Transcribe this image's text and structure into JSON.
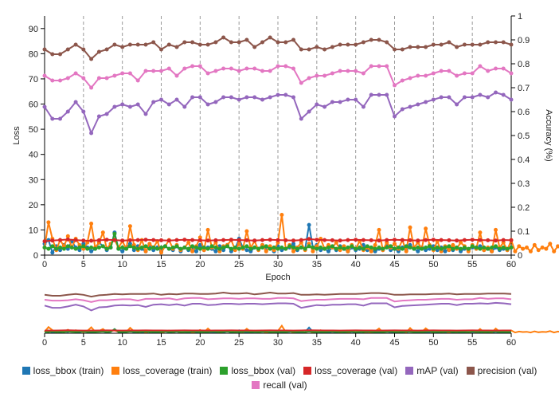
{
  "chart_data": {
    "type": "line",
    "xlabel": "Epoch",
    "ylabel_left": "Loss",
    "ylabel_right": "Accuracy (%)",
    "xlim": [
      0,
      60
    ],
    "ylim_left": [
      0,
      95
    ],
    "ylim_right": [
      0,
      1
    ],
    "x_ticks": [
      "0",
      "5",
      "10",
      "15",
      "20",
      "25",
      "30",
      "35",
      "40",
      "45",
      "50",
      "55",
      "60"
    ],
    "y_ticks_left": [
      "0",
      "10",
      "20",
      "30",
      "40",
      "50",
      "60",
      "70",
      "80",
      "90"
    ],
    "y_ticks_right": [
      "0",
      "0.1",
      "0.2",
      "0.3",
      "0.4",
      "0.5",
      "0.6",
      "0.7",
      "0.8",
      "0.9",
      "1"
    ],
    "vertical_gridlines_at": [
      5,
      10,
      15,
      20,
      25,
      30,
      35,
      40,
      45,
      50,
      55
    ],
    "legend_position": "bottom",
    "overview_panel": true,
    "series": [
      {
        "name": "loss_bbox (train)",
        "color": "#1f77b4",
        "axis": "left",
        "x_step": 0.5,
        "values": [
          4.5,
          6.0,
          1.0,
          3.5,
          2.0,
          4.0,
          2.5,
          5.5,
          3.0,
          2.0,
          4.5,
          3.0,
          1.5,
          2.5,
          5.0,
          3.5,
          2.0,
          3.0,
          9.0,
          2.5,
          1.5,
          3.0,
          4.5,
          2.0,
          3.5,
          2.5,
          1.5,
          4.0,
          2.0,
          3.0,
          1.5,
          3.5,
          2.5,
          2.0,
          3.5,
          1.5,
          3.0,
          2.0,
          2.5,
          1.5,
          4.0,
          2.0,
          3.0,
          2.5,
          1.5,
          3.5,
          2.0,
          4.0,
          1.5,
          2.5,
          6.5,
          3.0,
          2.0,
          1.5,
          3.0,
          2.5,
          4.0,
          2.0,
          3.0,
          1.5,
          3.5,
          2.0,
          2.5,
          3.0,
          4.5,
          2.0,
          3.0,
          2.5,
          12.0,
          3.0,
          4.0,
          2.0,
          2.5,
          1.5,
          3.0,
          2.0,
          3.5,
          2.5,
          1.5,
          3.0,
          2.0,
          2.5,
          4.0,
          2.0,
          3.0,
          1.5,
          2.5,
          2.0,
          3.5,
          2.0,
          2.5,
          1.5,
          3.0,
          2.0,
          4.0,
          2.5,
          1.5,
          3.0,
          2.0,
          2.5,
          3.5,
          2.0,
          3.0,
          1.5,
          2.5,
          2.0,
          3.0,
          1.5,
          2.5,
          2.0,
          3.0,
          2.5,
          3.5,
          2.0,
          2.5,
          1.5,
          3.0,
          2.0,
          2.5,
          2.0,
          3.0
        ]
      },
      {
        "name": "loss_coverage (train)",
        "color": "#ff7f0e",
        "axis": "left",
        "x_step": 0.5,
        "values": [
          3.0,
          13.0,
          6.5,
          2.0,
          6.0,
          3.5,
          7.5,
          3.0,
          6.5,
          4.0,
          2.5,
          5.0,
          12.5,
          3.0,
          5.0,
          9.0,
          2.5,
          4.5,
          6.0,
          3.0,
          5.5,
          2.5,
          11.5,
          4.0,
          2.0,
          6.0,
          1.5,
          4.5,
          3.0,
          5.5,
          1.0,
          3.5,
          6.0,
          2.5,
          4.0,
          2.0,
          3.0,
          5.0,
          1.5,
          3.5,
          7.0,
          2.0,
          10.0,
          3.0,
          5.0,
          1.5,
          3.5,
          4.0,
          6.0,
          2.0,
          4.5,
          2.5,
          9.5,
          3.0,
          5.5,
          2.0,
          4.0,
          1.5,
          3.5,
          2.0,
          5.0,
          16.0,
          2.5,
          4.0,
          1.5,
          3.0,
          5.0,
          2.0,
          4.5,
          1.5,
          3.5,
          6.5,
          2.5,
          4.0,
          3.0,
          5.0,
          2.0,
          3.5,
          1.5,
          4.0,
          2.5,
          5.5,
          2.0,
          3.0,
          1.5,
          4.0,
          10.0,
          2.0,
          5.0,
          3.0,
          4.5,
          2.5,
          6.0,
          1.5,
          11.0,
          3.0,
          5.0,
          2.5,
          10.5,
          4.0,
          2.0,
          5.5,
          1.5,
          3.5,
          2.0,
          4.0,
          2.5,
          5.0,
          3.5,
          1.5,
          4.0,
          2.5,
          9.0,
          2.0,
          3.0,
          1.5,
          10.0,
          3.0,
          5.0,
          2.0,
          6.0,
          1.5,
          3.5,
          2.5,
          3.0,
          1.5,
          4.0,
          2.0,
          3.0,
          2.5,
          4.5,
          1.5,
          3.5,
          2.0,
          5.5,
          2.5,
          3.0,
          1.5,
          4.0,
          2.0,
          3.5,
          1.5,
          2.5,
          2.0,
          3.0,
          1.5,
          2.5,
          2.0,
          3.0,
          5.0,
          2.0,
          8.0,
          2.5,
          3.0,
          1.5,
          3.5,
          2.0,
          3.0,
          1.5,
          2.5,
          2.0,
          6.5,
          1.5,
          7.0,
          3.0,
          2.0,
          2.5,
          4.0,
          1.5,
          3.0,
          2.0,
          3.5,
          2.5,
          9.0,
          2.0,
          3.0,
          1.5,
          2.5,
          5.0,
          2.0,
          3.0,
          1.5,
          2.5,
          2.0,
          3.0,
          1.5,
          3.5,
          2.0,
          2.5,
          1.5,
          2.0,
          3.0,
          2.5,
          1.5
        ]
      },
      {
        "name": "loss_bbox (val)",
        "color": "#2ca02c",
        "axis": "left",
        "x_step": 0.5,
        "values": [
          3.0,
          2.5,
          3.5,
          2.5,
          3.0,
          2.5,
          3.5,
          3.0,
          2.5,
          3.0,
          3.5,
          2.5,
          3.0,
          2.5,
          3.0,
          3.5,
          2.5,
          3.0,
          8.5,
          2.5,
          3.0,
          2.5,
          3.5,
          3.0,
          2.5,
          3.0,
          3.5,
          2.5,
          3.0,
          2.5,
          3.0,
          3.5,
          2.5,
          3.0,
          3.5,
          2.5,
          3.0,
          2.5,
          3.5,
          3.0,
          2.5,
          3.0,
          2.5,
          3.5,
          3.0,
          2.5,
          3.0,
          3.5,
          2.5,
          3.0,
          2.5,
          3.0,
          3.5,
          2.5,
          3.0,
          2.5,
          3.0,
          3.5,
          2.5,
          3.0,
          2.5,
          3.0,
          2.5,
          3.5,
          3.0,
          2.5,
          3.0,
          2.5,
          3.5,
          3.0,
          2.5,
          3.0,
          2.5,
          3.0,
          3.5,
          2.5,
          3.0,
          2.5,
          3.0,
          3.5,
          2.5,
          3.0,
          2.5,
          3.5,
          3.0,
          2.5,
          3.0,
          2.5,
          3.0,
          3.5,
          2.5,
          3.0,
          2.5,
          3.5,
          3.0,
          2.5,
          3.0,
          2.5,
          3.0,
          3.5,
          2.5,
          3.0,
          2.5,
          3.0,
          3.5,
          2.5,
          3.0,
          2.5,
          3.0,
          2.5,
          3.5,
          3.0,
          2.5,
          3.0,
          2.5,
          3.0,
          3.5,
          2.5,
          3.0,
          2.5,
          3.0
        ]
      },
      {
        "name": "loss_coverage (val)",
        "color": "#d62728",
        "axis": "left",
        "x_step": 1,
        "values": [
          5.5,
          5.8,
          6.0,
          6.2,
          6.0,
          5.8,
          5.7,
          5.9,
          6.1,
          6.0,
          5.8,
          5.9,
          6.0,
          6.1,
          6.0,
          5.9,
          5.8,
          6.0,
          6.1,
          6.0,
          5.9,
          5.8,
          5.9,
          6.0,
          6.1,
          6.0,
          5.9,
          5.8,
          6.0,
          6.1,
          6.0,
          5.9,
          5.8,
          6.0,
          6.4,
          6.1,
          6.0,
          5.9,
          5.8,
          6.0,
          6.1,
          6.0,
          5.9,
          5.8,
          6.0,
          6.1,
          6.0,
          5.9,
          5.8,
          6.0,
          6.1,
          6.0,
          5.9,
          5.8,
          6.0,
          6.1,
          6.0,
          5.9,
          5.8,
          6.0,
          5.9
        ]
      },
      {
        "name": "mAP (val)",
        "color": "#9467bd",
        "axis": "right",
        "x_step": 1,
        "values": [
          0.62,
          0.57,
          0.57,
          0.6,
          0.64,
          0.6,
          0.51,
          0.58,
          0.59,
          0.62,
          0.63,
          0.62,
          0.63,
          0.59,
          0.64,
          0.65,
          0.63,
          0.65,
          0.62,
          0.66,
          0.66,
          0.63,
          0.64,
          0.66,
          0.66,
          0.65,
          0.66,
          0.66,
          0.65,
          0.66,
          0.67,
          0.67,
          0.66,
          0.57,
          0.6,
          0.63,
          0.62,
          0.64,
          0.64,
          0.65,
          0.65,
          0.62,
          0.67,
          0.67,
          0.67,
          0.58,
          0.61,
          0.62,
          0.63,
          0.64,
          0.65,
          0.66,
          0.66,
          0.63,
          0.66,
          0.66,
          0.67,
          0.66,
          0.68,
          0.67,
          0.65
        ]
      },
      {
        "name": "precision (val)",
        "color": "#8c564b",
        "axis": "right",
        "x_step": 1,
        "values": [
          0.86,
          0.84,
          0.84,
          0.86,
          0.88,
          0.86,
          0.82,
          0.85,
          0.86,
          0.88,
          0.87,
          0.88,
          0.88,
          0.88,
          0.89,
          0.86,
          0.88,
          0.87,
          0.89,
          0.89,
          0.88,
          0.88,
          0.89,
          0.91,
          0.89,
          0.89,
          0.9,
          0.87,
          0.89,
          0.91,
          0.89,
          0.89,
          0.9,
          0.86,
          0.86,
          0.87,
          0.86,
          0.87,
          0.88,
          0.88,
          0.88,
          0.89,
          0.9,
          0.9,
          0.89,
          0.86,
          0.86,
          0.87,
          0.87,
          0.87,
          0.88,
          0.88,
          0.89,
          0.87,
          0.88,
          0.88,
          0.88,
          0.89,
          0.89,
          0.89,
          0.88
        ]
      },
      {
        "name": "recall (val)",
        "color": "#e377c2",
        "axis": "right",
        "x_step": 1,
        "values": [
          0.75,
          0.73,
          0.73,
          0.74,
          0.76,
          0.74,
          0.7,
          0.74,
          0.74,
          0.75,
          0.76,
          0.76,
          0.73,
          0.77,
          0.77,
          0.77,
          0.78,
          0.75,
          0.78,
          0.79,
          0.79,
          0.76,
          0.77,
          0.78,
          0.78,
          0.77,
          0.78,
          0.78,
          0.77,
          0.77,
          0.79,
          0.79,
          0.78,
          0.72,
          0.74,
          0.75,
          0.75,
          0.76,
          0.77,
          0.77,
          0.77,
          0.76,
          0.79,
          0.79,
          0.79,
          0.71,
          0.73,
          0.74,
          0.75,
          0.75,
          0.76,
          0.77,
          0.77,
          0.75,
          0.76,
          0.76,
          0.79,
          0.77,
          0.78,
          0.78,
          0.76
        ]
      }
    ]
  }
}
